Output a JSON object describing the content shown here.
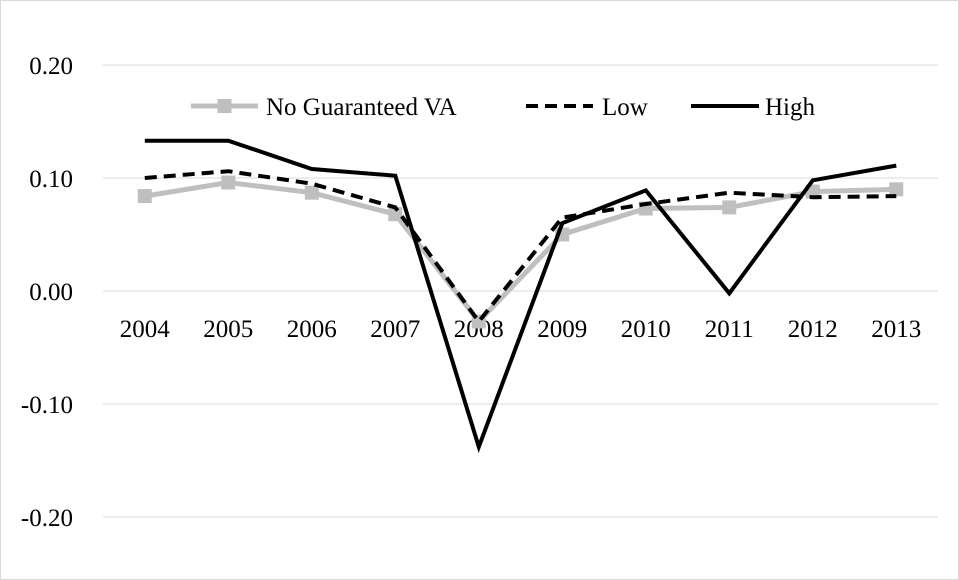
{
  "chart_data": {
    "type": "line",
    "title": "",
    "xlabel": "",
    "ylabel": "",
    "categories": [
      "2004",
      "2005",
      "2006",
      "2007",
      "2008",
      "2009",
      "2010",
      "2011",
      "2012",
      "2013"
    ],
    "ylim": [
      -0.25,
      0.25
    ],
    "yticks": [
      -0.2,
      -0.1,
      0.0,
      0.1,
      0.2
    ],
    "ytick_labels": [
      "-0.20",
      "-0.10",
      "0.00",
      "0.10",
      "0.20"
    ],
    "grid": "horizontal",
    "legend_position": "top-center",
    "series": [
      {
        "name": "No Guaranteed VA",
        "style": "solid-square-markers",
        "color": "#bfbfbf",
        "values": [
          0.084,
          0.096,
          0.087,
          0.068,
          -0.027,
          0.05,
          0.073,
          0.074,
          0.088,
          0.09
        ]
      },
      {
        "name": "Low",
        "style": "dashed",
        "color": "#000000",
        "values": [
          0.1,
          0.106,
          0.095,
          0.074,
          -0.027,
          0.065,
          0.077,
          0.087,
          0.083,
          0.084
        ]
      },
      {
        "name": "High",
        "style": "solid",
        "color": "#000000",
        "values": [
          0.133,
          0.133,
          0.108,
          0.102,
          -0.138,
          0.06,
          0.089,
          -0.002,
          0.098,
          0.111
        ]
      }
    ]
  }
}
